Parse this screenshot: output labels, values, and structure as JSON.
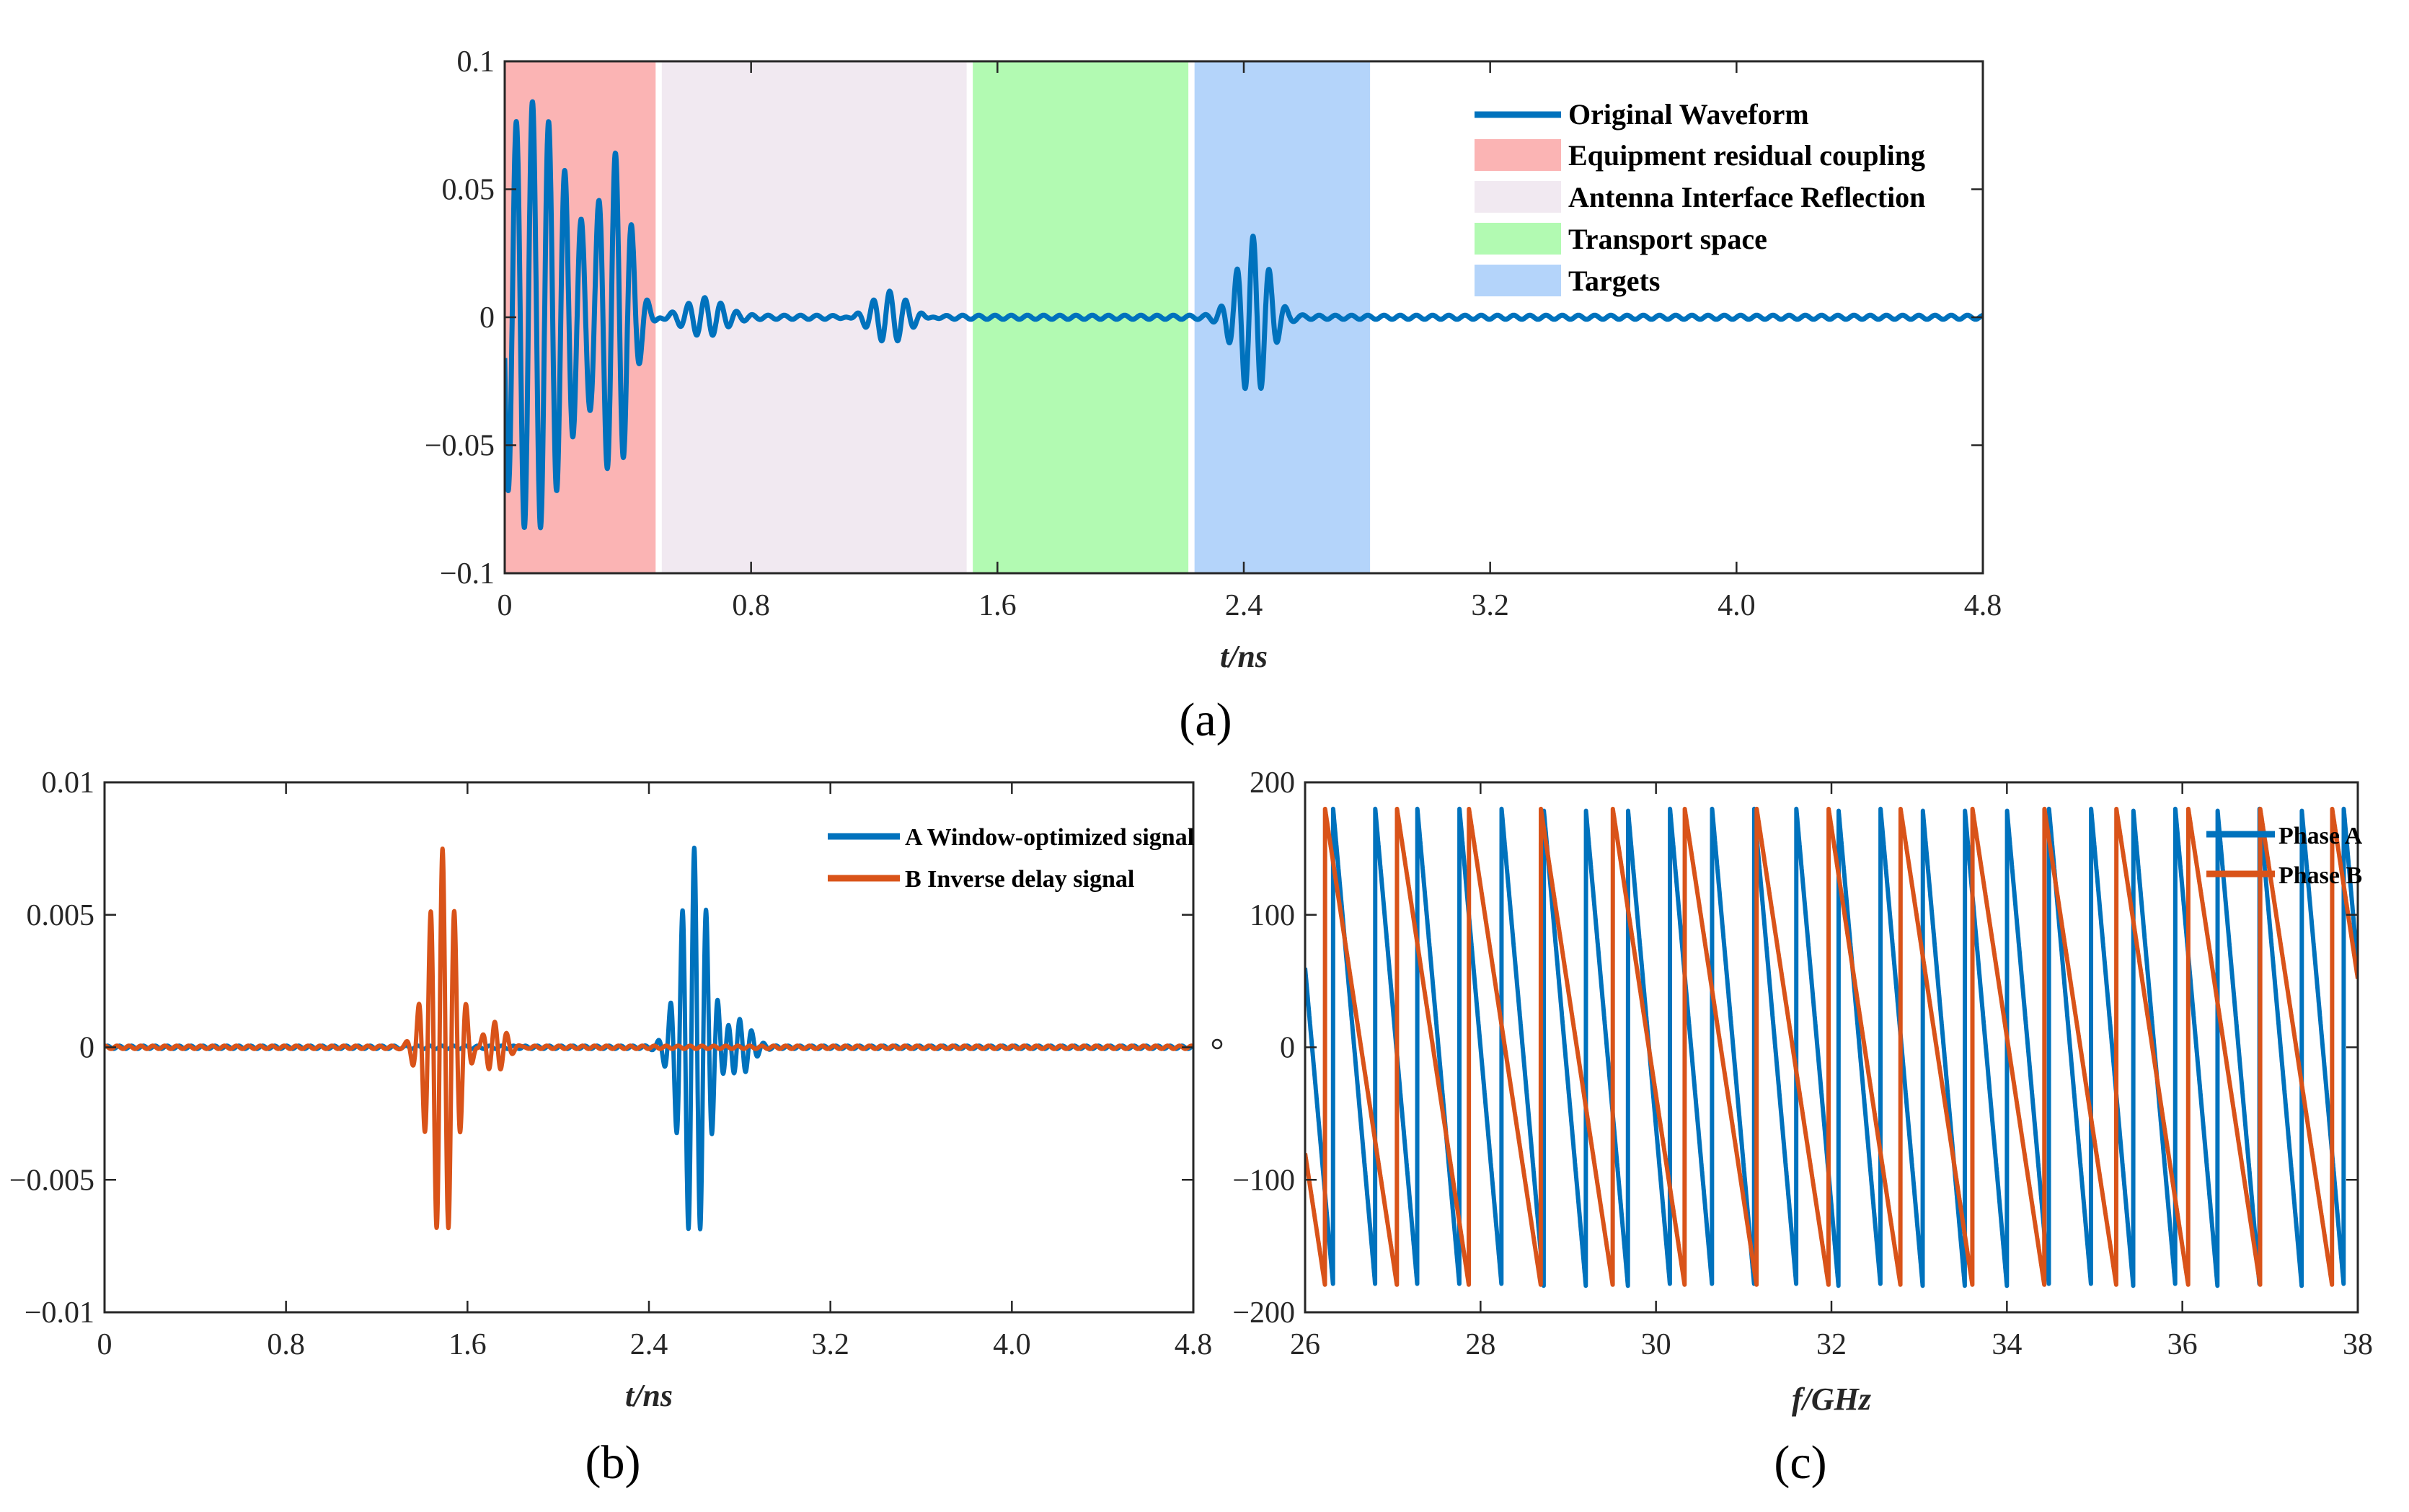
{
  "colors": {
    "blue": "#0072BD",
    "orange": "#D95319"
  },
  "chart_data": [
    {
      "id": "a",
      "type": "line",
      "caption": "(a)",
      "xlabel": "t/ns",
      "ylabel": "",
      "xlim": [
        0,
        4.8
      ],
      "ylim": [
        -0.1,
        0.1
      ],
      "xticks": [
        0,
        0.8,
        1.6,
        2.4,
        3.2,
        4.0,
        4.8
      ],
      "xtick_labels": [
        "0",
        "0.8",
        "1.6",
        "2.4",
        "3.2",
        "4.0",
        "4.8"
      ],
      "yticks": [
        -0.1,
        -0.05,
        0,
        0.05,
        0.1
      ],
      "ytick_labels": [
        "−0.1",
        "−0.05",
        "0",
        "0.05",
        "0.1"
      ],
      "legend_position": "top-right",
      "regions": [
        {
          "name": "Equipment residual coupling",
          "x0": 0,
          "x1": 0.49,
          "color": "#FBB4B4"
        },
        {
          "name": "Antenna Interface Reflection",
          "x0": 0.51,
          "x1": 1.5,
          "color": "#F1E9F1"
        },
        {
          "name": "Transport space",
          "x0": 1.52,
          "x1": 2.22,
          "color": "#B2FAB2"
        },
        {
          "name": "Targets",
          "x0": 2.24,
          "x1": 2.81,
          "color": "#B4D4FA"
        }
      ],
      "series": [
        {
          "name": "Original Waveform",
          "color": "#0072BD",
          "packets": [
            {
              "t0": 0.09,
              "sigma": 0.12,
              "amp": 0.085,
              "freq": 19
            },
            {
              "t0": 0.36,
              "sigma": 0.05,
              "amp": 0.06,
              "freq": 19
            },
            {
              "t0": 0.65,
              "sigma": 0.06,
              "amp": 0.007,
              "freq": 19
            },
            {
              "t0": 1.25,
              "sigma": 0.06,
              "amp": 0.011,
              "freq": 19
            },
            {
              "t0": 2.43,
              "sigma": 0.05,
              "amp": 0.031,
              "freq": 19
            }
          ]
        }
      ]
    },
    {
      "id": "b",
      "type": "line",
      "caption": "(b)",
      "xlabel": "t/ns",
      "ylabel": "",
      "xlim": [
        0,
        4.8
      ],
      "ylim": [
        -0.01,
        0.01
      ],
      "xticks": [
        0,
        0.8,
        1.6,
        2.4,
        3.2,
        4.0,
        4.8
      ],
      "xtick_labels": [
        "0",
        "0.8",
        "1.6",
        "2.4",
        "3.2",
        "4.0",
        "4.8"
      ],
      "yticks": [
        -0.01,
        -0.005,
        0,
        0.005,
        0.01
      ],
      "ytick_labels": [
        "−0.01",
        "−0.005",
        "0",
        "0.005",
        "0.01"
      ],
      "legend_position": "top-right",
      "series": [
        {
          "name": "A Window-optimized signal",
          "color": "#0072BD",
          "packets": [
            {
              "t0": 2.6,
              "sigma": 0.06,
              "amp": 0.0075,
              "freq": 19
            },
            {
              "t0": 2.8,
              "sigma": 0.05,
              "amp": 0.001,
              "freq": 19
            }
          ]
        },
        {
          "name": "B Inverse delay signal",
          "color": "#D95319",
          "packets": [
            {
              "t0": 1.49,
              "sigma": 0.06,
              "amp": 0.0075,
              "freq": 19
            },
            {
              "t0": 1.72,
              "sigma": 0.05,
              "amp": 0.001,
              "freq": 19
            }
          ]
        }
      ]
    },
    {
      "id": "c",
      "type": "line",
      "caption": "(c)",
      "xlabel": "f/GHz",
      "ylabel": "",
      "xlim": [
        26,
        38
      ],
      "ylim": [
        -200,
        200
      ],
      "xticks": [
        26,
        28,
        30,
        32,
        34,
        36,
        38
      ],
      "xtick_labels": [
        "26",
        "28",
        "30",
        "32",
        "34",
        "36",
        "38"
      ],
      "yticks": [
        -200,
        -100,
        0,
        100,
        200
      ],
      "ytick_labels": [
        "−200",
        "−100",
        "0",
        "100",
        "200"
      ],
      "legend_position": "top-right",
      "series": [
        {
          "name": "Phase A",
          "color": "#0072BD",
          "phase_start": 60,
          "period_ghz": 0.48
        },
        {
          "name": "Phase B",
          "color": "#D95319",
          "phase_start": -80,
          "period_ghz": 0.82
        }
      ]
    }
  ]
}
